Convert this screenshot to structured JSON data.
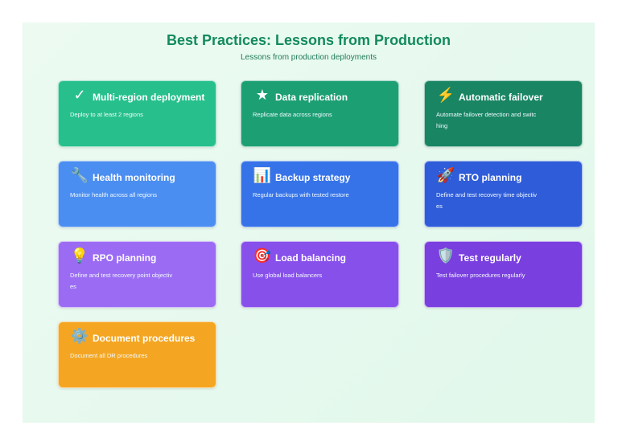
{
  "header": {
    "title": "Best Practices: Lessons from Production",
    "subtitle": "Lessons from production deployments"
  },
  "cards": [
    {
      "title": "Multi-region deployment",
      "description": "Deploy to at least 2 regions",
      "icon": "✓",
      "icon_name": "check-icon",
      "color": "#27c08c"
    },
    {
      "title": "Data replication",
      "description": "Replicate data across regions",
      "icon": "★",
      "icon_name": "star-icon",
      "color": "#1d9f74"
    },
    {
      "title": "Automatic failover",
      "description": "Automate failover detection and switching",
      "icon": "⚡",
      "icon_name": "lightning-icon",
      "color": "#198563"
    },
    {
      "title": "Health monitoring",
      "description": "Monitor health across all regions",
      "icon": "🔧",
      "icon_name": "wrench-icon",
      "color": "#4b8ef1"
    },
    {
      "title": "Backup strategy",
      "description": "Regular backups with tested restore",
      "icon": "📊",
      "icon_name": "bar-chart-icon",
      "color": "#3673e9"
    },
    {
      "title": "RTO planning",
      "description": "Define and test recovery time objectives",
      "icon": "🚀",
      "icon_name": "rocket-icon",
      "color": "#2f5cd9"
    },
    {
      "title": "RPO planning",
      "description": "Define and test recovery point objectives",
      "icon": "💡",
      "icon_name": "lightbulb-icon",
      "color": "#9b6cf3"
    },
    {
      "title": "Load balancing",
      "description": "Use global load balancers",
      "icon": "🎯",
      "icon_name": "target-icon",
      "color": "#8850eb"
    },
    {
      "title": "Test regularly",
      "description": "Test failover procedures regularly",
      "icon": "🛡️",
      "icon_name": "shield-icon",
      "color": "#7a3fdf"
    },
    {
      "title": "Document procedures",
      "description": "Document all DR procedures",
      "icon": "⚙️",
      "icon_name": "gear-icon",
      "color": "#f4a623"
    }
  ]
}
